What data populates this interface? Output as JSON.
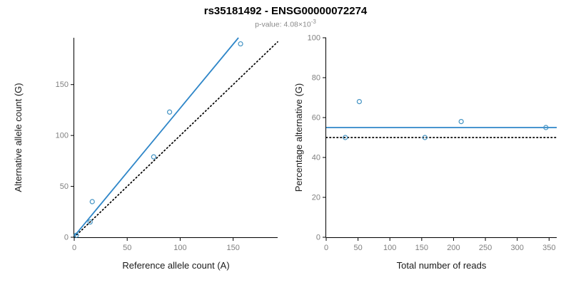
{
  "header": {
    "title": "rs35181492 - ENSG00000072274",
    "subtitle_main": "p-value: 4.08×10",
    "subtitle_exponent": "-3"
  },
  "colors": {
    "background": "#ffffff",
    "accent_blue": "#2e86c8",
    "axis": "#000000",
    "tick_label": "#7f7f7f",
    "axis_label": "#1a1a1a"
  },
  "chart_data": [
    {
      "type": "scatter",
      "title": "",
      "xlabel": "Reference allele count (A)",
      "ylabel": "Alternative allele count (G)",
      "xlim": [
        0,
        192
      ],
      "ylim": [
        0,
        196
      ],
      "xticks": [
        0,
        50,
        100,
        150
      ],
      "yticks": [
        0,
        50,
        100,
        150
      ],
      "grid": false,
      "points": [
        [
          2,
          2
        ],
        [
          15,
          15
        ],
        [
          17,
          35
        ],
        [
          75,
          79
        ],
        [
          90,
          123
        ],
        [
          157,
          190
        ]
      ],
      "point_color": "#4393c3",
      "lines": [
        {
          "name": "regression-line",
          "x1": 0,
          "y1": 1,
          "x2": 155,
          "y2": 196,
          "color": "#2e86c8",
          "width": 1.8,
          "dash": ""
        },
        {
          "name": "identity-line",
          "x1": 0,
          "y1": 0,
          "x2": 192,
          "y2": 192,
          "color": "#000000",
          "width": 1.7,
          "dash": "1.5,3.5"
        }
      ]
    },
    {
      "type": "scatter",
      "title": "",
      "xlabel": "Total number of reads",
      "ylabel": "Percentage alternative (G)",
      "xlim": [
        0,
        362
      ],
      "ylim": [
        0,
        100
      ],
      "xticks": [
        0,
        50,
        100,
        150,
        200,
        250,
        300,
        350
      ],
      "yticks": [
        0,
        20,
        40,
        60,
        80,
        100
      ],
      "grid": false,
      "points": [
        [
          30,
          50
        ],
        [
          52,
          68
        ],
        [
          155,
          50
        ],
        [
          212,
          58
        ],
        [
          345,
          55
        ]
      ],
      "point_color": "#4393c3",
      "lines": [
        {
          "name": "mean-percentage-line",
          "x1": 0,
          "y1": 55,
          "x2": 362,
          "y2": 55,
          "color": "#2e86c8",
          "width": 1.8,
          "dash": ""
        },
        {
          "name": "null-percentage-line",
          "x1": 0,
          "y1": 50,
          "x2": 362,
          "y2": 50,
          "color": "#000000",
          "width": 1.7,
          "dash": "1.5,3.5"
        }
      ]
    }
  ]
}
